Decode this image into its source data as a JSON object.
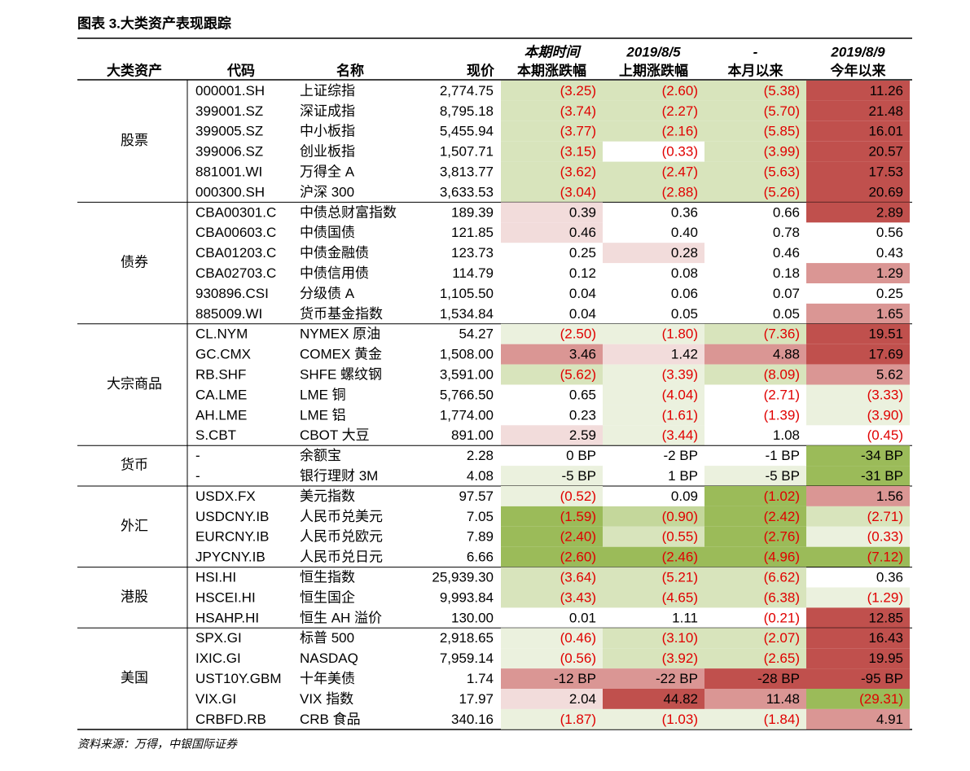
{
  "title": "图表 3.大类资产表现跟踪",
  "table": {
    "header_top": [
      "本期时间",
      "2019/8/5",
      "-",
      "2019/8/9"
    ],
    "header": [
      "大类资产",
      "代码",
      "名称",
      "现价",
      "本期涨跌幅",
      "上期涨跌幅",
      "本月以来",
      "今年以来"
    ],
    "groups": [
      {
        "name": "股票",
        "rows": [
          {
            "cells": [
              "000001.SH",
              "上证综指",
              "2,774.75",
              "(3.25)",
              "(2.60)",
              "(5.38)",
              "11.26"
            ],
            "fills": [
              "#d8e4bc",
              "#d8e4bc",
              "#d8e4bc",
              "#c0504d"
            ]
          },
          {
            "cells": [
              "399001.SZ",
              "深证成指",
              "8,795.18",
              "(3.74)",
              "(2.27)",
              "(5.70)",
              "21.48"
            ],
            "fills": [
              "#d8e4bc",
              "#d8e4bc",
              "#d8e4bc",
              "#c0504d"
            ]
          },
          {
            "cells": [
              "399005.SZ",
              "中小板指",
              "5,455.94",
              "(3.77)",
              "(2.16)",
              "(5.85)",
              "16.01"
            ],
            "fills": [
              "#d8e4bc",
              "#d8e4bc",
              "#d8e4bc",
              "#c0504d"
            ]
          },
          {
            "cells": [
              "399006.SZ",
              "创业板指",
              "1,507.71",
              "(3.15)",
              "(0.33)",
              "(3.99)",
              "20.57"
            ],
            "fills": [
              "#d8e4bc",
              null,
              "#d8e4bc",
              "#c0504d"
            ]
          },
          {
            "cells": [
              "881001.WI",
              "万得全 A",
              "3,813.77",
              "(3.62)",
              "(2.47)",
              "(5.63)",
              "17.53"
            ],
            "fills": [
              "#d8e4bc",
              "#d8e4bc",
              "#d8e4bc",
              "#c0504d"
            ]
          },
          {
            "cells": [
              "000300.SH",
              "沪深 300",
              "3,633.53",
              "(3.04)",
              "(2.88)",
              "(5.26)",
              "20.69"
            ],
            "fills": [
              "#d8e4bc",
              "#d8e4bc",
              "#d8e4bc",
              "#c0504d"
            ]
          }
        ]
      },
      {
        "name": "债券",
        "rows": [
          {
            "cells": [
              "CBA00301.C",
              "中债总财富指数",
              "189.39",
              "0.39",
              "0.36",
              "0.66",
              "2.89"
            ],
            "fills": [
              "#f2dcdb",
              null,
              null,
              "#c0504d"
            ]
          },
          {
            "cells": [
              "CBA00603.C",
              "中债国债",
              "121.85",
              "0.46",
              "0.40",
              "0.78",
              "0.56"
            ],
            "fills": [
              "#f2dcdb",
              null,
              null,
              null
            ]
          },
          {
            "cells": [
              "CBA01203.C",
              "中债金融债",
              "123.73",
              "0.25",
              "0.28",
              "0.46",
              "0.43"
            ],
            "fills": [
              null,
              "#f2dcdb",
              null,
              null
            ]
          },
          {
            "cells": [
              "CBA02703.C",
              "中债信用债",
              "114.79",
              "0.12",
              "0.08",
              "0.18",
              "1.29"
            ],
            "fills": [
              null,
              null,
              null,
              "#da9694"
            ]
          },
          {
            "cells": [
              "930896.CSI",
              "分级债 A",
              "1,105.50",
              "0.04",
              "0.06",
              "0.07",
              "0.25"
            ],
            "fills": [
              null,
              null,
              null,
              null
            ]
          },
          {
            "cells": [
              "885009.WI",
              "货币基金指数",
              "1,534.84",
              "0.04",
              "0.05",
              "0.05",
              "1.65"
            ],
            "fills": [
              null,
              null,
              null,
              "#da9694"
            ]
          }
        ]
      },
      {
        "name": "大宗商品",
        "rows": [
          {
            "cells": [
              "CL.NYM",
              "NYMEX 原油",
              "54.27",
              "(2.50)",
              "(1.80)",
              "(7.36)",
              "19.51"
            ],
            "fills": [
              "#ebf1de",
              "#ebf1de",
              "#d8e4bc",
              "#c0504d"
            ]
          },
          {
            "cells": [
              "GC.CMX",
              "COMEX 黄金",
              "1,508.00",
              "3.46",
              "1.42",
              "4.88",
              "17.69"
            ],
            "fills": [
              "#da9694",
              "#f2dcdb",
              "#da9694",
              "#c0504d"
            ]
          },
          {
            "cells": [
              "RB.SHF",
              "SHFE 螺纹钢",
              "3,591.00",
              "(5.62)",
              "(3.39)",
              "(8.09)",
              "5.62"
            ],
            "fills": [
              "#d8e4bc",
              "#ebf1de",
              "#d8e4bc",
              "#da9694"
            ]
          },
          {
            "cells": [
              "CA.LME",
              "LME 铜",
              "5,766.50",
              "0.65",
              "(4.04)",
              "(2.71)",
              "(3.33)"
            ],
            "fills": [
              null,
              "#ebf1de",
              null,
              "#ebf1de"
            ]
          },
          {
            "cells": [
              "AH.LME",
              "LME 铝",
              "1,774.00",
              "0.23",
              "(1.61)",
              "(1.39)",
              "(3.90)"
            ],
            "fills": [
              null,
              "#ebf1de",
              null,
              "#ebf1de"
            ]
          },
          {
            "cells": [
              "S.CBT",
              "CBOT 大豆",
              "891.00",
              "2.59",
              "(3.44)",
              "1.08",
              "(0.45)"
            ],
            "fills": [
              "#f2dcdb",
              "#ebf1de",
              null,
              null
            ]
          }
        ]
      },
      {
        "name": "货币",
        "rows": [
          {
            "cells": [
              "-",
              "余额宝",
              "2.28",
              "0 BP",
              "-2 BP",
              "-1 BP",
              "-34 BP"
            ],
            "fills": [
              null,
              null,
              null,
              "#9bbb59"
            ]
          },
          {
            "cells": [
              "-",
              "银行理财 3M",
              "4.08",
              "-5 BP",
              "1 BP",
              "-5 BP",
              "-31 BP"
            ],
            "fills": [
              "#ebf1de",
              null,
              "#ebf1de",
              "#9bbb59"
            ]
          }
        ]
      },
      {
        "name": "外汇",
        "rows": [
          {
            "cells": [
              "USDX.FX",
              "美元指数",
              "97.57",
              "(0.52)",
              "0.09",
              "(1.02)",
              "1.56"
            ],
            "fills": [
              "#ebf1de",
              null,
              "#9bbb59",
              "#da9694"
            ]
          },
          {
            "cells": [
              "USDCNY.IB",
              "人民币兑美元",
              "7.05",
              "(1.59)",
              "(0.90)",
              "(2.42)",
              "(2.71)"
            ],
            "fills": [
              "#9bbb59",
              "#c4d79b",
              "#9bbb59",
              "#d8e4bc"
            ]
          },
          {
            "cells": [
              "EURCNY.IB",
              "人民币兑欧元",
              "7.89",
              "(2.40)",
              "(0.55)",
              "(2.76)",
              "(0.33)"
            ],
            "fills": [
              "#9bbb59",
              "#d8e4bc",
              "#9bbb59",
              "#ebf1de"
            ]
          },
          {
            "cells": [
              "JPYCNY.IB",
              "人民币兑日元",
              "6.66",
              "(2.60)",
              "(2.46)",
              "(4.96)",
              "(7.12)"
            ],
            "fills": [
              "#9bbb59",
              "#9bbb59",
              "#9bbb59",
              "#9bbb59"
            ]
          }
        ]
      },
      {
        "name": "港股",
        "rows": [
          {
            "cells": [
              "HSI.HI",
              "恒生指数",
              "25,939.30",
              "(3.64)",
              "(5.21)",
              "(6.62)",
              "0.36"
            ],
            "fills": [
              "#d8e4bc",
              "#d8e4bc",
              "#d8e4bc",
              null
            ]
          },
          {
            "cells": [
              "HSCEI.HI",
              "恒生国企",
              "9,993.84",
              "(3.43)",
              "(4.65)",
              "(6.38)",
              "(1.29)"
            ],
            "fills": [
              "#d8e4bc",
              "#d8e4bc",
              "#d8e4bc",
              "#ebf1de"
            ]
          },
          {
            "cells": [
              "HSAHP.HI",
              "恒生 AH 溢价",
              "130.00",
              "0.01",
              "1.11",
              "(0.21)",
              "12.85"
            ],
            "fills": [
              null,
              null,
              null,
              "#c0504d"
            ]
          }
        ]
      },
      {
        "name": "美国",
        "rows": [
          {
            "cells": [
              "SPX.GI",
              "标普 500",
              "2,918.65",
              "(0.46)",
              "(3.10)",
              "(2.07)",
              "16.43"
            ],
            "fills": [
              "#ebf1de",
              "#d8e4bc",
              "#d8e4bc",
              "#c0504d"
            ]
          },
          {
            "cells": [
              "IXIC.GI",
              "NASDAQ",
              "7,959.14",
              "(0.56)",
              "(3.92)",
              "(2.65)",
              "19.95"
            ],
            "fills": [
              "#ebf1de",
              "#d8e4bc",
              "#d8e4bc",
              "#c0504d"
            ]
          },
          {
            "cells": [
              "UST10Y.GBM",
              "十年美债",
              "1.74",
              "-12 BP",
              "-22 BP",
              "-28 BP",
              "-95 BP"
            ],
            "fills": [
              "#da9694",
              "#da9694",
              "#c0504d",
              "#c0504d"
            ]
          },
          {
            "cells": [
              "VIX.GI",
              "VIX 指数",
              "17.97",
              "2.04",
              "44.82",
              "11.48",
              "(29.31)"
            ],
            "fills": [
              "#f2dcdb",
              "#c0504d",
              "#da9694",
              "#9bbb59"
            ]
          },
          {
            "cells": [
              "CRBFD.RB",
              "CRB 食品",
              "340.16",
              "(1.87)",
              "(1.03)",
              "(1.84)",
              "4.91"
            ],
            "fills": [
              "#ebf1de",
              "#ebf1de",
              "#ebf1de",
              "#da9694"
            ]
          }
        ]
      }
    ]
  },
  "source": "资料来源：万得，中银国际证券"
}
